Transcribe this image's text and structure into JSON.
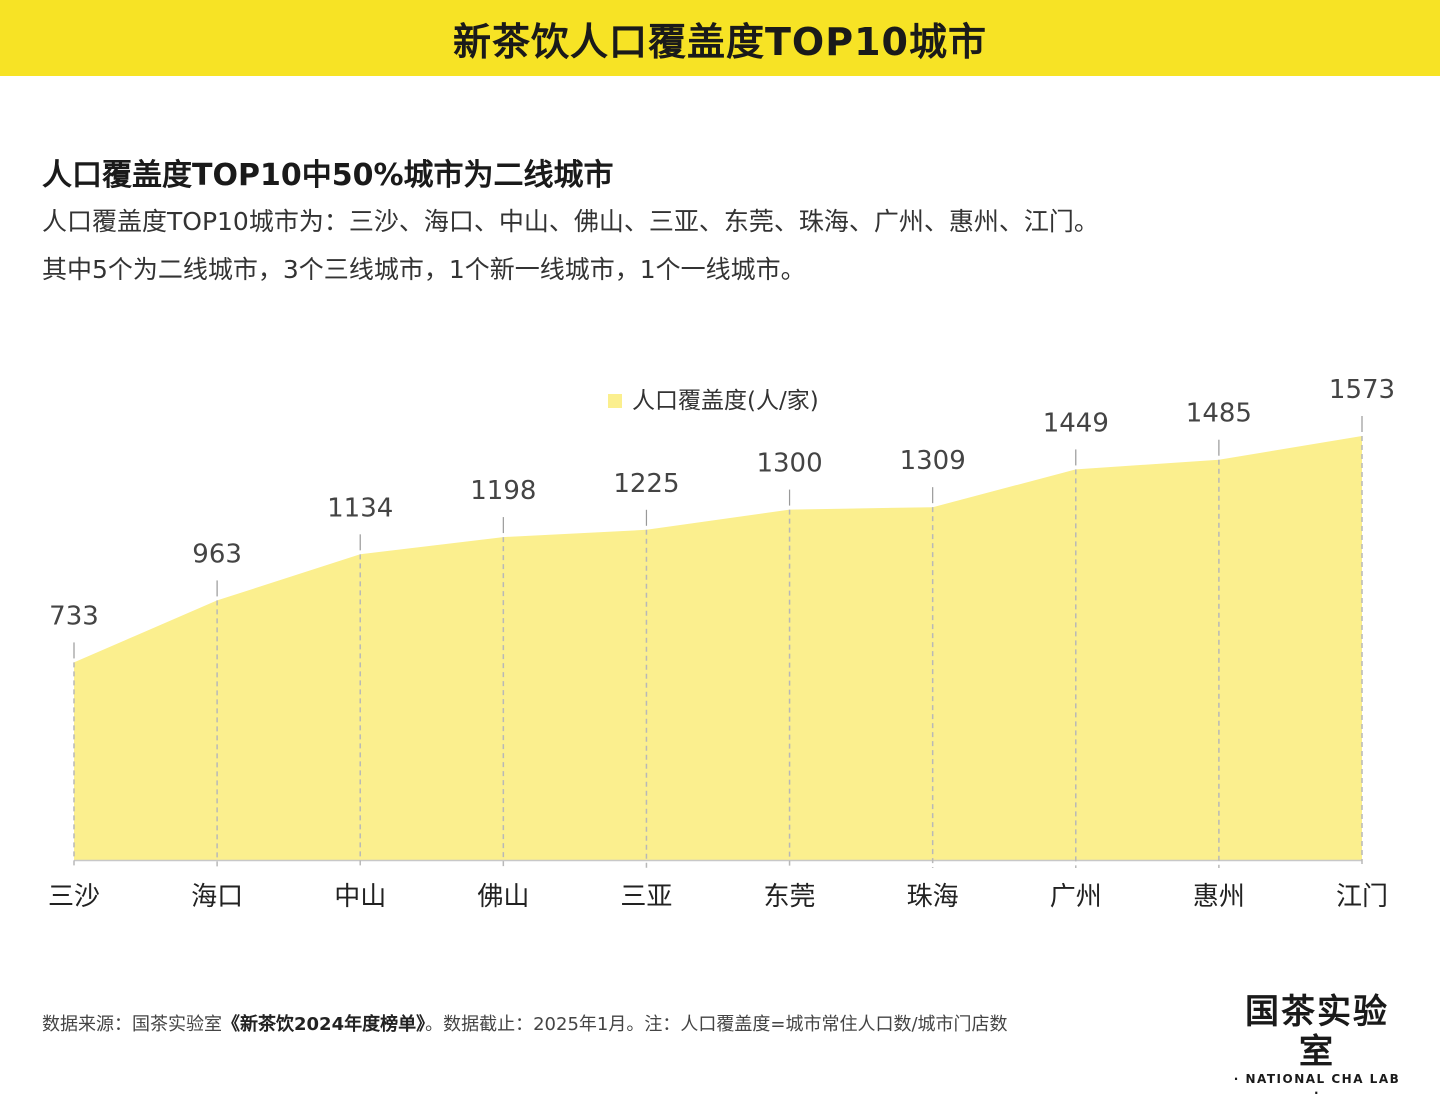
{
  "header": {
    "title": "新茶饮人口覆盖度TOP10城市"
  },
  "intro": {
    "subtitle": "人口覆盖度TOP10中50%城市为二线城市",
    "line1": "人口覆盖度TOP10城市为：三沙、海口、中山、佛山、三亚、东莞、珠海、广州、惠州、江门。",
    "line2": "其中5个为二线城市，3个三线城市，1个新一线城市，1个一线城市。"
  },
  "chart_data": {
    "type": "area",
    "categories": [
      "三沙",
      "海口",
      "中山",
      "佛山",
      "三亚",
      "东莞",
      "珠海",
      "广州",
      "惠州",
      "江门"
    ],
    "series": [
      {
        "name": "人口覆盖度(人/家)",
        "values": [
          733,
          963,
          1134,
          1198,
          1225,
          1300,
          1309,
          1449,
          1485,
          1573
        ],
        "color": "#fbef8e"
      }
    ],
    "ylim": [
      0,
      1573
    ],
    "legend": "top-center",
    "grid": false,
    "colors": {
      "area": "#fbef8e",
      "guide": "#b8b8b8",
      "axis": "#c8c8c8"
    }
  },
  "footer": {
    "prefix": "数据来源：国茶实验室",
    "report": "《新茶饮2024年度榜单》",
    "suffix": "。数据截止：2025年1月。注：人口覆盖度=城市常住人口数/城市门店数"
  },
  "brand": {
    "name_cn": "国茶实验室",
    "name_en": "· NATIONAL CHA LAB ·"
  }
}
